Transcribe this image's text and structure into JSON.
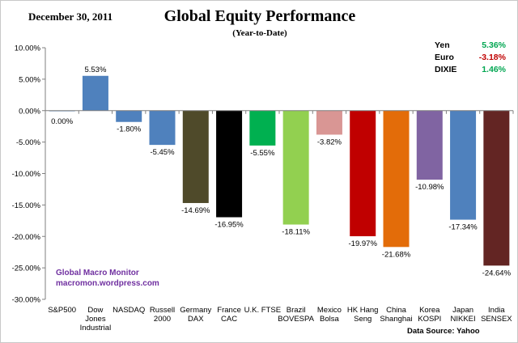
{
  "header": {
    "date": "December 30,  2011",
    "title": "Global Equity Performance",
    "subtitle": "(Year-to-Date)"
  },
  "currencies": [
    {
      "name": "Yen",
      "value": "5.36%",
      "color": "#00a651"
    },
    {
      "name": "Euro",
      "value": "-3.18%",
      "color": "#c00000"
    },
    {
      "name": "DIXIE",
      "value": "1.46%",
      "color": "#00a651"
    }
  ],
  "watermark": {
    "line1": "Global Macro Monitor",
    "line2": "macromon.wordpress.com"
  },
  "source": "Data Source:   Yahoo",
  "chart_data": {
    "type": "bar",
    "categories": [
      [
        "S&P500"
      ],
      [
        "Dow",
        "Jones",
        "Industrial"
      ],
      [
        "NASDAQ"
      ],
      [
        "Russell",
        "2000"
      ],
      [
        "Germany",
        "DAX"
      ],
      [
        "France",
        "CAC"
      ],
      [
        "U.K. FTSE"
      ],
      [
        "Brazil",
        "BOVESPA"
      ],
      [
        "Mexico",
        "Bolsa"
      ],
      [
        "HK Hang",
        "Seng"
      ],
      [
        "China",
        "Shanghai"
      ],
      [
        "Korea",
        "KOSPI"
      ],
      [
        "Japan",
        "NIKKEI"
      ],
      [
        "India",
        "SENSEX"
      ]
    ],
    "values": [
      0.0,
      5.53,
      -1.8,
      -5.45,
      -14.69,
      -16.95,
      -5.55,
      -18.11,
      -3.82,
      -19.97,
      -21.68,
      -10.98,
      -17.34,
      -24.64
    ],
    "data_labels": [
      "0.00%",
      "5.53%",
      "-1.80%",
      "-5.45%",
      "-14.69%",
      "-16.95%",
      "-5.55%",
      "-18.11%",
      "-3.82%",
      "-19.97%",
      "-21.68%",
      "-10.98%",
      "-17.34%",
      "-24.64%"
    ],
    "colors": [
      "#4f81bd",
      "#4f81bd",
      "#4f81bd",
      "#4f81bd",
      "#4f4a2a",
      "#000000",
      "#00b050",
      "#92d050",
      "#d99694",
      "#c00000",
      "#e36c09",
      "#8064a2",
      "#4f81bd",
      "#632523"
    ],
    "ylim": [
      -30,
      10
    ],
    "yticks": [
      10,
      5,
      0,
      -5,
      -10,
      -15,
      -20,
      -25,
      -30
    ],
    "ytick_labels": [
      "10.00%",
      "5.00%",
      "0.00%",
      "-5.00%",
      "-10.00%",
      "-15.00%",
      "-20.00%",
      "-25.00%",
      "-30.00%"
    ],
    "grid": false
  }
}
